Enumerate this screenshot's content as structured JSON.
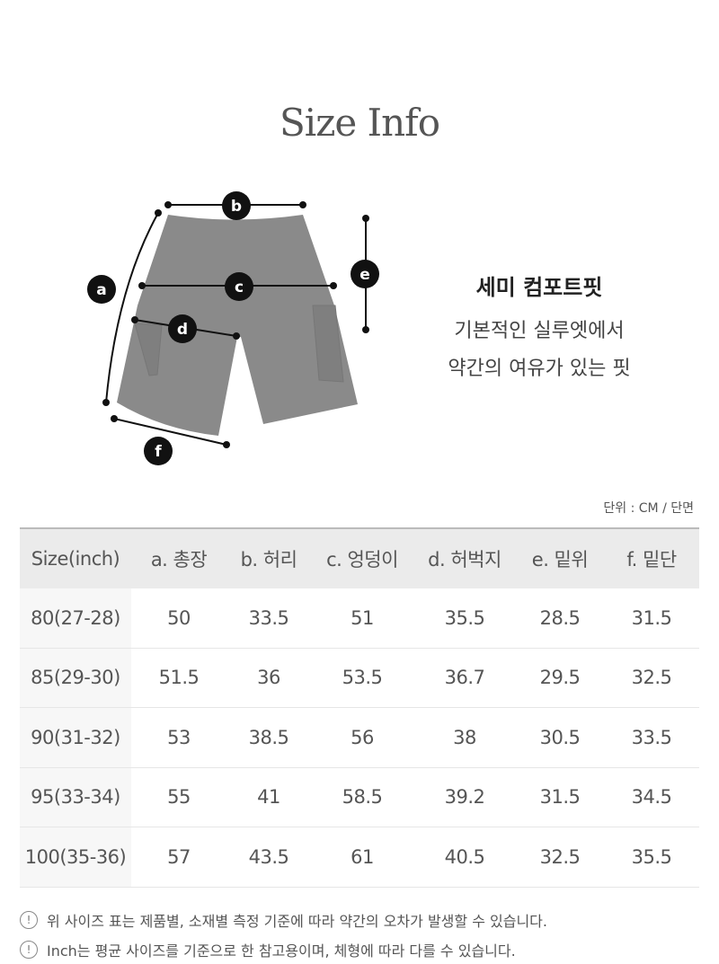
{
  "title": "Size Info",
  "diagram": {
    "labels": [
      "a",
      "b",
      "c",
      "d",
      "e",
      "f"
    ]
  },
  "fit": {
    "name": "세미 컴포트핏",
    "desc_line1": "기본적인 실루엣에서",
    "desc_line2": "약간의 여유가 있는 핏"
  },
  "unit": "단위 : CM  / 단면",
  "table": {
    "headers": [
      "Size(inch)",
      "a. 총장",
      "b. 허리",
      "c. 엉덩이",
      "d. 허벅지",
      "e. 밑위",
      "f. 밑단"
    ],
    "rows": [
      [
        "80(27-28)",
        "50",
        "33.5",
        "51",
        "35.5",
        "28.5",
        "31.5"
      ],
      [
        "85(29-30)",
        "51.5",
        "36",
        "53.5",
        "36.7",
        "29.5",
        "32.5"
      ],
      [
        "90(31-32)",
        "53",
        "38.5",
        "56",
        "38",
        "30.5",
        "33.5"
      ],
      [
        "95(33-34)",
        "55",
        "41",
        "58.5",
        "39.2",
        "31.5",
        "34.5"
      ],
      [
        "100(35-36)",
        "57",
        "43.5",
        "61",
        "40.5",
        "32.5",
        "35.5"
      ]
    ]
  },
  "notes": [
    "위 사이즈 표는 제품별, 소재별 측정 기준에 따라 약간의 오차가 발생할 수 있습니다.",
    "Inch는 평균 사이즈를 기준으로 한 참고용이며, 체형에 따라 다를 수 있습니다."
  ],
  "icons": {
    "note": "info-circle-icon"
  }
}
